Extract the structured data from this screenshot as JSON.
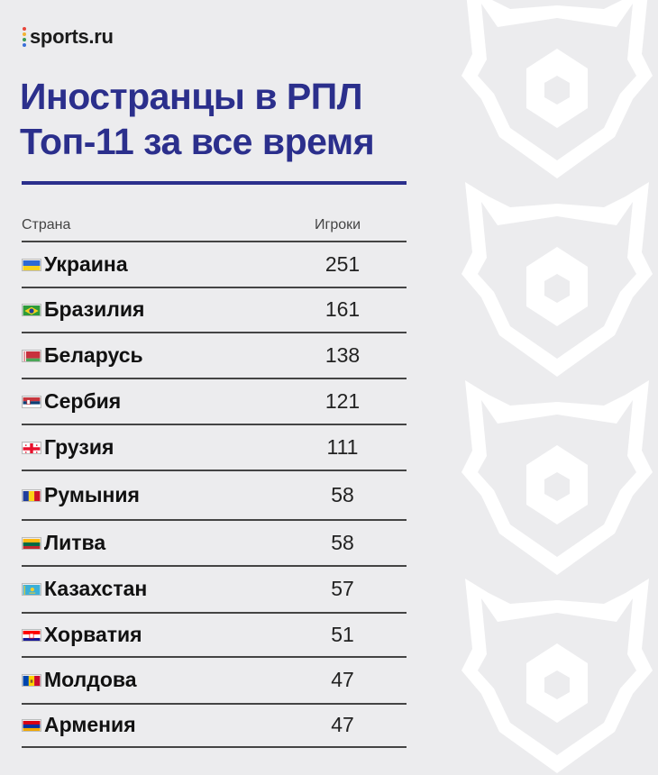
{
  "brand": {
    "name": "sports.ru",
    "dot_colors": [
      "#e8463a",
      "#f2b233",
      "#3a9a55",
      "#3a6fd8"
    ]
  },
  "title": {
    "line1": "Иностранцы в РПЛ",
    "line2": "Топ-11 за все время",
    "color": "#2b2f8c"
  },
  "table": {
    "headers": {
      "country": "Страна",
      "players": "Игроки"
    },
    "rows": [
      {
        "country": "Украина",
        "players": "251",
        "flag": "ukraine-flag"
      },
      {
        "country": "Бразилия",
        "players": "161",
        "flag": "brazil-flag"
      },
      {
        "country": "Беларусь",
        "players": "138",
        "flag": "belarus-flag"
      },
      {
        "country": "Сербия",
        "players": "121",
        "flag": "serbia-flag"
      },
      {
        "country": "Грузия",
        "players": "111",
        "flag": "georgia-flag"
      },
      {
        "country": "Румыния",
        "players": "58",
        "flag": "romania-flag"
      },
      {
        "country": "Литва",
        "players": "58",
        "flag": "lithuania-flag"
      },
      {
        "country": "Казахстан",
        "players": "57",
        "flag": "kazakhstan-flag"
      },
      {
        "country": "Хорватия",
        "players": "51",
        "flag": "croatia-flag"
      },
      {
        "country": "Молдова",
        "players": "47",
        "flag": "moldova-flag"
      },
      {
        "country": "Армения",
        "players": "47",
        "flag": "armenia-flag"
      }
    ]
  },
  "colors": {
    "background": "#ececee",
    "watermark": "#ffffff"
  },
  "decor": {
    "watermark": "rpl-bear-logo-watermark"
  }
}
